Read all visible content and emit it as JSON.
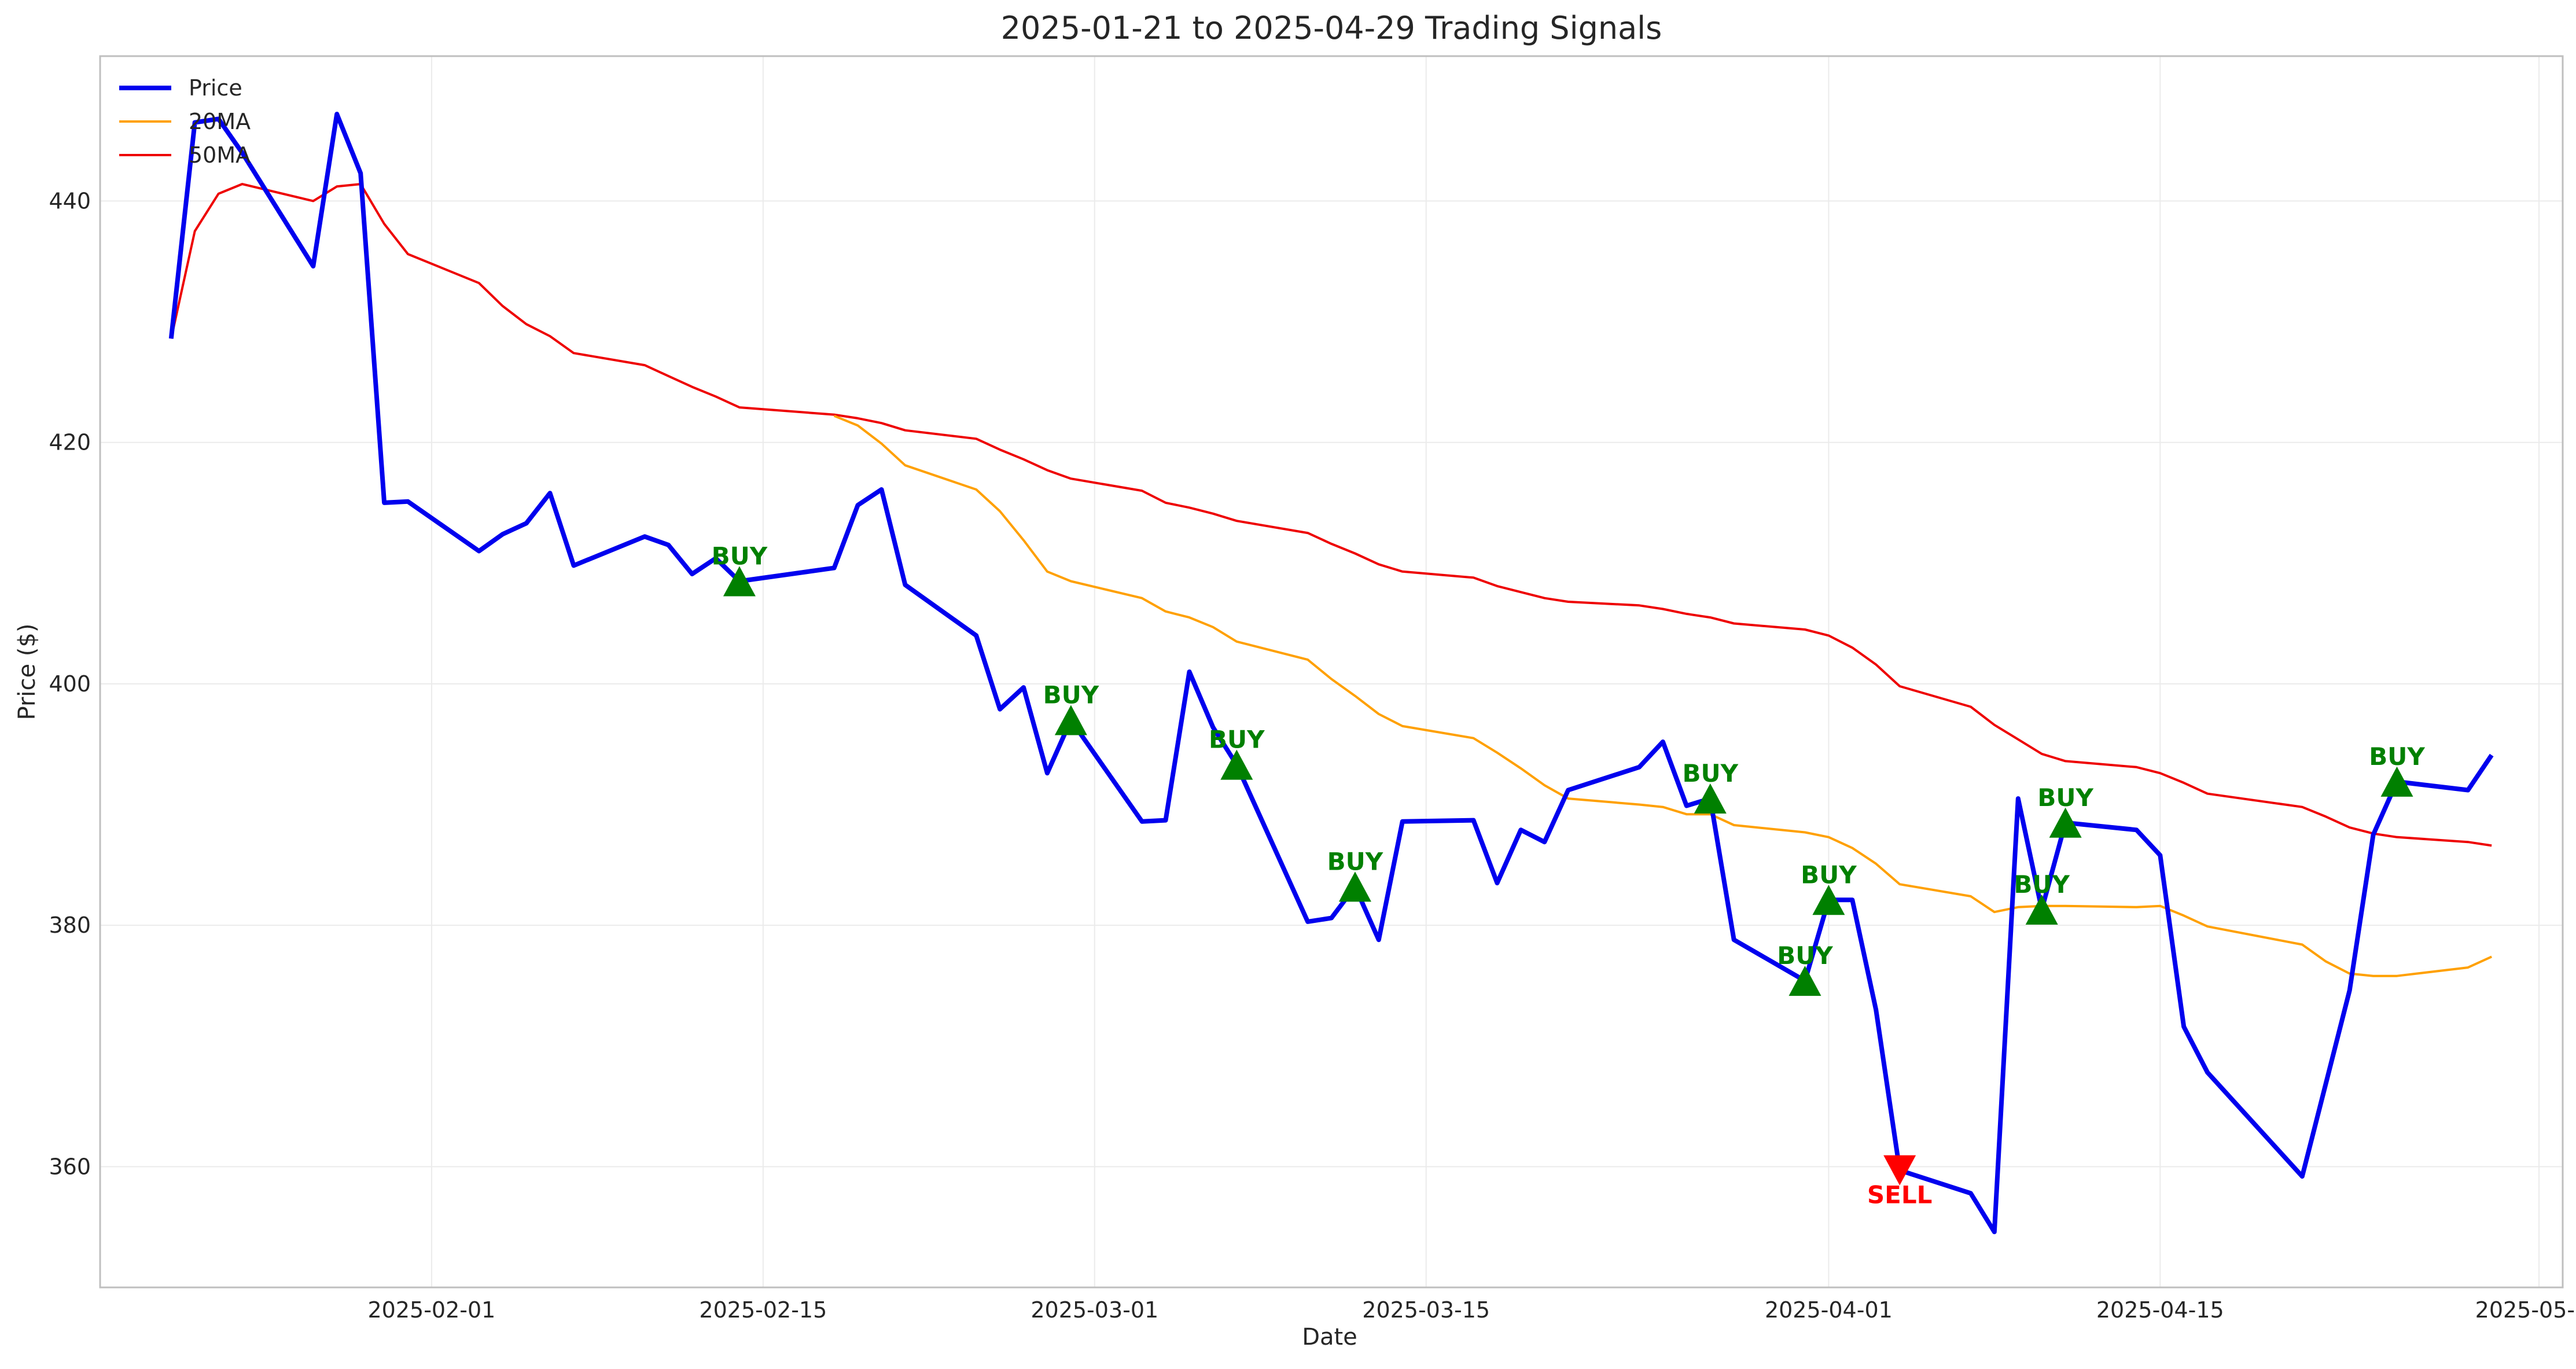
{
  "chart_data": {
    "type": "line",
    "title": "2025-01-21 to 2025-04-29 Trading Signals",
    "xlabel": "Date",
    "ylabel": "Price ($)",
    "xlim": [
      "2025-01-18",
      "2025-05-02"
    ],
    "ylim": [
      350,
      452
    ],
    "x_ticks": [
      "2025-02-01",
      "2025-02-15",
      "2025-03-01",
      "2025-03-15",
      "2025-04-01",
      "2025-04-15",
      "2025-05-01"
    ],
    "y_ticks": [
      360,
      380,
      400,
      420,
      440
    ],
    "grid": true,
    "legend_position": "top-left",
    "series": [
      {
        "name": "Price",
        "color": "#0000ee",
        "points": [
          [
            "2025-01-21",
            428.6
          ],
          [
            "2025-01-22",
            446.5
          ],
          [
            "2025-01-23",
            446.8
          ],
          [
            "2025-01-24",
            444.0
          ],
          [
            "2025-01-27",
            434.6
          ],
          [
            "2025-01-28",
            447.2
          ],
          [
            "2025-01-29",
            442.3
          ],
          [
            "2025-01-30",
            415.0
          ],
          [
            "2025-01-31",
            415.1
          ],
          [
            "2025-02-03",
            411.0
          ],
          [
            "2025-02-04",
            412.4
          ],
          [
            "2025-02-05",
            413.3
          ],
          [
            "2025-02-06",
            415.8
          ],
          [
            "2025-02-07",
            409.8
          ],
          [
            "2025-02-10",
            412.2
          ],
          [
            "2025-02-11",
            411.5
          ],
          [
            "2025-02-12",
            409.1
          ],
          [
            "2025-02-13",
            410.4
          ],
          [
            "2025-02-14",
            408.5
          ],
          [
            "2025-02-18",
            409.6
          ],
          [
            "2025-02-19",
            414.8
          ],
          [
            "2025-02-20",
            416.1
          ],
          [
            "2025-02-21",
            408.2
          ],
          [
            "2025-02-24",
            404.0
          ],
          [
            "2025-02-25",
            397.9
          ],
          [
            "2025-02-26",
            399.7
          ],
          [
            "2025-02-27",
            392.6
          ],
          [
            "2025-02-28",
            397.0
          ],
          [
            "2025-03-03",
            388.6
          ],
          [
            "2025-03-04",
            388.7
          ],
          [
            "2025-03-05",
            401.0
          ],
          [
            "2025-03-06",
            396.4
          ],
          [
            "2025-03-07",
            393.3
          ],
          [
            "2025-03-10",
            380.3
          ],
          [
            "2025-03-11",
            380.6
          ],
          [
            "2025-03-12",
            383.2
          ],
          [
            "2025-03-13",
            378.8
          ],
          [
            "2025-03-14",
            388.6
          ],
          [
            "2025-03-17",
            388.7
          ],
          [
            "2025-03-18",
            383.5
          ],
          [
            "2025-03-19",
            387.9
          ],
          [
            "2025-03-20",
            386.9
          ],
          [
            "2025-03-21",
            391.2
          ],
          [
            "2025-03-24",
            393.1
          ],
          [
            "2025-03-25",
            395.2
          ],
          [
            "2025-03-26",
            389.9
          ],
          [
            "2025-03-27",
            390.5
          ],
          [
            "2025-03-28",
            378.8
          ],
          [
            "2025-03-31",
            375.4
          ],
          [
            "2025-04-01",
            382.1
          ],
          [
            "2025-04-02",
            382.1
          ],
          [
            "2025-04-03",
            373.0
          ],
          [
            "2025-04-04",
            359.7
          ],
          [
            "2025-04-07",
            357.8
          ],
          [
            "2025-04-08",
            354.6
          ],
          [
            "2025-04-09",
            390.5
          ],
          [
            "2025-04-10",
            381.3
          ],
          [
            "2025-04-11",
            388.5
          ],
          [
            "2025-04-14",
            387.9
          ],
          [
            "2025-04-15",
            385.8
          ],
          [
            "2025-04-16",
            371.6
          ],
          [
            "2025-04-17",
            367.8
          ],
          [
            "2025-04-21",
            359.2
          ],
          [
            "2025-04-23",
            374.6
          ],
          [
            "2025-04-24",
            387.5
          ],
          [
            "2025-04-25",
            391.9
          ],
          [
            "2025-04-28",
            391.2
          ],
          [
            "2025-04-29",
            394.1
          ]
        ]
      },
      {
        "name": "20MA",
        "color": "#ffa000",
        "points": [
          [
            "2025-02-18",
            422.2
          ],
          [
            "2025-02-19",
            421.4
          ],
          [
            "2025-02-20",
            419.9
          ],
          [
            "2025-02-21",
            418.1
          ],
          [
            "2025-02-24",
            416.1
          ],
          [
            "2025-02-25",
            414.3
          ],
          [
            "2025-02-26",
            411.9
          ],
          [
            "2025-02-27",
            409.3
          ],
          [
            "2025-02-28",
            408.5
          ],
          [
            "2025-03-03",
            407.1
          ],
          [
            "2025-03-04",
            406.0
          ],
          [
            "2025-03-05",
            405.5
          ],
          [
            "2025-03-06",
            404.7
          ],
          [
            "2025-03-07",
            403.5
          ],
          [
            "2025-03-10",
            402.0
          ],
          [
            "2025-03-11",
            400.4
          ],
          [
            "2025-03-12",
            399.0
          ],
          [
            "2025-03-13",
            397.5
          ],
          [
            "2025-03-14",
            396.5
          ],
          [
            "2025-03-17",
            395.5
          ],
          [
            "2025-03-18",
            394.3
          ],
          [
            "2025-03-19",
            393.0
          ],
          [
            "2025-03-20",
            391.6
          ],
          [
            "2025-03-21",
            390.5
          ],
          [
            "2025-03-24",
            390.0
          ],
          [
            "2025-03-25",
            389.8
          ],
          [
            "2025-03-26",
            389.2
          ],
          [
            "2025-03-27",
            389.2
          ],
          [
            "2025-03-28",
            388.3
          ],
          [
            "2025-03-31",
            387.7
          ],
          [
            "2025-04-01",
            387.3
          ],
          [
            "2025-04-02",
            386.4
          ],
          [
            "2025-04-03",
            385.1
          ],
          [
            "2025-04-04",
            383.4
          ],
          [
            "2025-04-07",
            382.4
          ],
          [
            "2025-04-08",
            381.1
          ],
          [
            "2025-04-09",
            381.5
          ],
          [
            "2025-04-10",
            381.6
          ],
          [
            "2025-04-11",
            381.6
          ],
          [
            "2025-04-14",
            381.5
          ],
          [
            "2025-04-15",
            381.6
          ],
          [
            "2025-04-16",
            380.8
          ],
          [
            "2025-04-17",
            379.9
          ],
          [
            "2025-04-21",
            378.4
          ],
          [
            "2025-04-22",
            377.0
          ],
          [
            "2025-04-23",
            376.0
          ],
          [
            "2025-04-24",
            375.8
          ],
          [
            "2025-04-25",
            375.8
          ],
          [
            "2025-04-28",
            376.5
          ],
          [
            "2025-04-29",
            377.4
          ]
        ]
      },
      {
        "name": "50MA",
        "color": "#ee0000",
        "points": [
          [
            "2025-01-21",
            428.6
          ],
          [
            "2025-01-22",
            437.5
          ],
          [
            "2025-01-23",
            440.6
          ],
          [
            "2025-01-24",
            441.4
          ],
          [
            "2025-01-27",
            440.0
          ],
          [
            "2025-01-28",
            441.2
          ],
          [
            "2025-01-29",
            441.4
          ],
          [
            "2025-01-30",
            438.1
          ],
          [
            "2025-01-31",
            435.6
          ],
          [
            "2025-02-03",
            433.2
          ],
          [
            "2025-02-04",
            431.3
          ],
          [
            "2025-02-05",
            429.8
          ],
          [
            "2025-02-06",
            428.8
          ],
          [
            "2025-02-07",
            427.4
          ],
          [
            "2025-02-10",
            426.4
          ],
          [
            "2025-02-11",
            425.5
          ],
          [
            "2025-02-12",
            424.6
          ],
          [
            "2025-02-13",
            423.8
          ],
          [
            "2025-02-14",
            422.9
          ],
          [
            "2025-02-18",
            422.3
          ],
          [
            "2025-02-19",
            422.0
          ],
          [
            "2025-02-20",
            421.6
          ],
          [
            "2025-02-21",
            421.0
          ],
          [
            "2025-02-24",
            420.3
          ],
          [
            "2025-02-25",
            419.4
          ],
          [
            "2025-02-26",
            418.6
          ],
          [
            "2025-02-27",
            417.7
          ],
          [
            "2025-02-28",
            417.0
          ],
          [
            "2025-03-03",
            416.0
          ],
          [
            "2025-03-04",
            415.0
          ],
          [
            "2025-03-05",
            414.6
          ],
          [
            "2025-03-06",
            414.1
          ],
          [
            "2025-03-07",
            413.5
          ],
          [
            "2025-03-10",
            412.5
          ],
          [
            "2025-03-11",
            411.6
          ],
          [
            "2025-03-12",
            410.8
          ],
          [
            "2025-03-13",
            409.9
          ],
          [
            "2025-03-14",
            409.3
          ],
          [
            "2025-03-17",
            408.8
          ],
          [
            "2025-03-18",
            408.1
          ],
          [
            "2025-03-19",
            407.6
          ],
          [
            "2025-03-20",
            407.1
          ],
          [
            "2025-03-21",
            406.8
          ],
          [
            "2025-03-24",
            406.5
          ],
          [
            "2025-03-25",
            406.2
          ],
          [
            "2025-03-26",
            405.8
          ],
          [
            "2025-03-27",
            405.5
          ],
          [
            "2025-03-28",
            405.0
          ],
          [
            "2025-03-31",
            404.5
          ],
          [
            "2025-04-01",
            404.0
          ],
          [
            "2025-04-02",
            403.0
          ],
          [
            "2025-04-03",
            401.6
          ],
          [
            "2025-04-04",
            399.8
          ],
          [
            "2025-04-07",
            398.1
          ],
          [
            "2025-04-08",
            396.6
          ],
          [
            "2025-04-09",
            395.4
          ],
          [
            "2025-04-10",
            394.2
          ],
          [
            "2025-04-11",
            393.6
          ],
          [
            "2025-04-14",
            393.1
          ],
          [
            "2025-04-15",
            392.6
          ],
          [
            "2025-04-16",
            391.8
          ],
          [
            "2025-04-17",
            390.9
          ],
          [
            "2025-04-21",
            389.8
          ],
          [
            "2025-04-22",
            389.0
          ],
          [
            "2025-04-23",
            388.1
          ],
          [
            "2025-04-24",
            387.6
          ],
          [
            "2025-04-25",
            387.3
          ],
          [
            "2025-04-28",
            386.9
          ],
          [
            "2025-04-29",
            386.6
          ]
        ]
      }
    ],
    "signals": [
      {
        "type": "buy",
        "label": "BUY",
        "date": "2025-02-14",
        "price": 408.5
      },
      {
        "type": "buy",
        "label": "BUY",
        "date": "2025-02-28",
        "price": 397.0
      },
      {
        "type": "buy",
        "label": "BUY",
        "date": "2025-03-07",
        "price": 393.3
      },
      {
        "type": "buy",
        "label": "BUY",
        "date": "2025-03-12",
        "price": 383.2
      },
      {
        "type": "buy",
        "label": "BUY",
        "date": "2025-03-27",
        "price": 390.5
      },
      {
        "type": "buy",
        "label": "BUY",
        "date": "2025-03-31",
        "price": 375.4
      },
      {
        "type": "buy",
        "label": "BUY",
        "date": "2025-04-01",
        "price": 382.1
      },
      {
        "type": "sell",
        "label": "SELL",
        "date": "2025-04-04",
        "price": 359.7
      },
      {
        "type": "buy",
        "label": "BUY",
        "date": "2025-04-10",
        "price": 381.3
      },
      {
        "type": "buy",
        "label": "BUY",
        "date": "2025-04-11",
        "price": 388.5
      },
      {
        "type": "buy",
        "label": "BUY",
        "date": "2025-04-25",
        "price": 391.9
      }
    ],
    "colors": {
      "buy": "#008000",
      "sell": "#ff0000",
      "grid": "#ebebeb",
      "axis": "#bfbfbf"
    }
  }
}
